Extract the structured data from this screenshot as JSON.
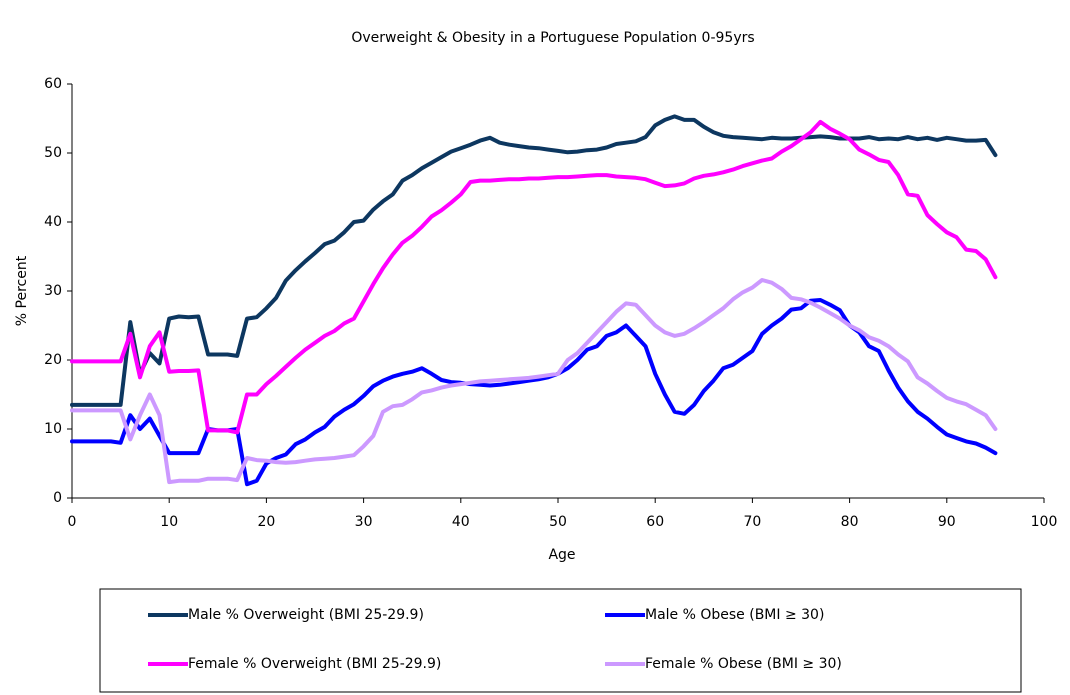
{
  "chart_data": {
    "type": "line",
    "title": "Overweight & Obesity in a Portuguese Population 0-95yrs",
    "x_label": "Age",
    "y_label": "% Percent",
    "xlim": [
      0,
      100
    ],
    "xticks": [
      0,
      10,
      20,
      30,
      40,
      50,
      60,
      70,
      80,
      90,
      100
    ],
    "ylim": [
      0,
      60
    ],
    "yticks": [
      0,
      10,
      20,
      30,
      40,
      50,
      60
    ],
    "grid": false,
    "legend": "bottom",
    "x": [
      0,
      1,
      2,
      3,
      4,
      5,
      6,
      7,
      8,
      9,
      10,
      11,
      12,
      13,
      14,
      15,
      16,
      17,
      18,
      19,
      20,
      21,
      22,
      23,
      24,
      25,
      26,
      27,
      28,
      29,
      30,
      31,
      32,
      33,
      34,
      35,
      36,
      37,
      38,
      39,
      40,
      41,
      42,
      43,
      44,
      45,
      46,
      47,
      48,
      49,
      50,
      51,
      52,
      53,
      54,
      55,
      56,
      57,
      58,
      59,
      60,
      61,
      62,
      63,
      64,
      65,
      66,
      67,
      68,
      69,
      70,
      71,
      72,
      73,
      74,
      75,
      76,
      77,
      78,
      79,
      80,
      81,
      82,
      83,
      84,
      85,
      86,
      87,
      88,
      89,
      90,
      91,
      92,
      93,
      94,
      95
    ],
    "series": [
      {
        "name": "Male % Overweight (BMI 25-29.9)",
        "color": "#0d3760",
        "values": [
          13.5,
          13.5,
          13.5,
          13.5,
          13.5,
          13.5,
          25.5,
          18,
          21,
          19.5,
          26,
          26.3,
          26.2,
          26.3,
          20.8,
          20.8,
          20.8,
          20.6,
          26,
          26.2,
          27.5,
          29,
          31.5,
          33,
          34.3,
          35.5,
          36.8,
          37.3,
          38.5,
          40,
          40.2,
          41.8,
          43,
          44,
          46,
          46.8,
          47.8,
          48.6,
          49.4,
          50.2,
          50.7,
          51.2,
          51.8,
          52.2,
          51.5,
          51.2,
          51,
          50.8,
          50.7,
          50.5,
          50.3,
          50.1,
          50.2,
          50.4,
          50.5,
          50.8,
          51.3,
          51.5,
          51.7,
          52.3,
          54,
          54.8,
          55.3,
          54.8,
          54.8,
          53.8,
          53,
          52.5,
          52.3,
          52.2,
          52.1,
          52,
          52.2,
          52.1,
          52.1,
          52.2,
          52.3,
          52.4,
          52.3,
          52.1,
          52.1,
          52.1,
          52.3,
          52,
          52.1,
          52,
          52.3,
          52,
          52.2,
          51.9,
          52.2,
          52,
          51.8,
          51.8,
          51.9,
          49.7
        ]
      },
      {
        "name": "Male % Obese (BMI ≥ 30)",
        "color": "#0000ff",
        "values": [
          8.2,
          8.2,
          8.2,
          8.2,
          8.2,
          8,
          12,
          10,
          11.5,
          9,
          6.5,
          6.5,
          6.5,
          6.5,
          10,
          9.8,
          9.8,
          10,
          2,
          2.5,
          5,
          5.8,
          6.3,
          7.8,
          8.5,
          9.5,
          10.3,
          11.8,
          12.8,
          13.6,
          14.8,
          16.2,
          17,
          17.6,
          18,
          18.3,
          18.8,
          18,
          17.1,
          16.8,
          16.7,
          16.5,
          16.4,
          16.3,
          16.4,
          16.6,
          16.8,
          17,
          17.2,
          17.5,
          18,
          18.8,
          20,
          21.5,
          22,
          23.5,
          24,
          25,
          23.5,
          22,
          18,
          15,
          12.5,
          12.2,
          13.5,
          15.5,
          17,
          18.8,
          19.3,
          20.3,
          21.3,
          23.8,
          25,
          26,
          27.3,
          27.5,
          28.6,
          28.7,
          28,
          27.2,
          25,
          24,
          22,
          21.3,
          18.5,
          16,
          14,
          12.5,
          11.5,
          10.3,
          9.2,
          8.7,
          8.2,
          7.9,
          7.3,
          6.5
        ]
      },
      {
        "name": "Female % Overweight (BMI 25-29.9)",
        "color": "#ff00ff",
        "values": [
          19.8,
          19.8,
          19.8,
          19.8,
          19.8,
          19.8,
          23.8,
          17.5,
          22,
          24,
          18.3,
          18.4,
          18.4,
          18.5,
          9.8,
          9.8,
          9.8,
          9.5,
          15,
          15,
          16.5,
          17.7,
          19,
          20.3,
          21.5,
          22.5,
          23.5,
          24.2,
          25.3,
          26,
          28.5,
          31,
          33.3,
          35.3,
          37,
          38,
          39.3,
          40.8,
          41.7,
          42.8,
          44,
          45.8,
          46,
          46,
          46.1,
          46.2,
          46.2,
          46.3,
          46.3,
          46.4,
          46.5,
          46.5,
          46.6,
          46.7,
          46.8,
          46.8,
          46.6,
          46.5,
          46.4,
          46.2,
          45.7,
          45.2,
          45.3,
          45.6,
          46.3,
          46.7,
          46.9,
          47.2,
          47.6,
          48.1,
          48.5,
          48.9,
          49.2,
          50.2,
          51,
          52,
          53,
          54.5,
          53.5,
          52.8,
          52,
          50.5,
          49.8,
          49,
          48.7,
          46.8,
          44,
          43.8,
          41,
          39.7,
          38.5,
          37.8,
          36,
          35.8,
          34.6,
          32
        ]
      },
      {
        "name": "Female % Obese (BMI ≥ 30)",
        "color": "#cc99ff",
        "values": [
          12.7,
          12.7,
          12.7,
          12.7,
          12.7,
          12.7,
          8.5,
          12,
          15,
          12,
          2.3,
          2.5,
          2.5,
          2.5,
          2.8,
          2.8,
          2.8,
          2.6,
          5.8,
          5.5,
          5.4,
          5.2,
          5.1,
          5.2,
          5.4,
          5.6,
          5.7,
          5.8,
          6,
          6.2,
          7.5,
          9,
          12.5,
          13.3,
          13.5,
          14.3,
          15.3,
          15.6,
          16,
          16.3,
          16.5,
          16.7,
          16.9,
          17,
          17.1,
          17.2,
          17.3,
          17.4,
          17.6,
          17.8,
          18,
          20,
          21,
          22.5,
          24,
          25.5,
          27,
          28.2,
          28,
          26.5,
          25,
          24,
          23.5,
          23.8,
          24.6,
          25.5,
          26.5,
          27.5,
          28.8,
          29.8,
          30.5,
          31.6,
          31.2,
          30.3,
          29,
          28.8,
          28.3,
          27.6,
          26.8,
          26,
          25,
          24.3,
          23.3,
          22.8,
          22,
          20.8,
          19.8,
          17.5,
          16.6,
          15.5,
          14.5,
          14,
          13.6,
          12.8,
          12,
          10
        ]
      }
    ]
  }
}
